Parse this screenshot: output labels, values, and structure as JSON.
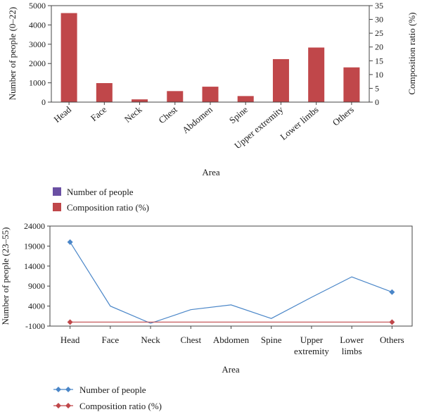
{
  "chart_data": [
    {
      "type": "bar",
      "categories": [
        "Head",
        "Face",
        "Neck",
        "Chest",
        "Abdomen",
        "Spine",
        "Upper extremity",
        "Lower limbs",
        "Others"
      ],
      "series": [
        {
          "name": "Number of people",
          "values": [
            0,
            0,
            0,
            0,
            0,
            0,
            0,
            0,
            0
          ],
          "color": "#6a4fa3"
        },
        {
          "name": "Composition ratio (%)",
          "values": [
            32.3,
            6.9,
            1.0,
            4.0,
            5.6,
            2.2,
            15.6,
            19.8,
            12.6
          ],
          "color": "#c0474a"
        }
      ],
      "xlabel": "Area",
      "ylabel": "Number of people (0–22)",
      "y2label": "Composition ratio (%)",
      "ylim": [
        0,
        5000
      ],
      "y2lim": [
        0,
        35
      ],
      "yticks": [
        "0",
        "1000",
        "2000",
        "3000",
        "4000",
        "5000"
      ],
      "y2ticks": [
        "0",
        "5",
        "10",
        "15",
        "20",
        "25",
        "30",
        "35"
      ],
      "legend": "bottom-left",
      "grid": false
    },
    {
      "type": "line",
      "categories": [
        "Head",
        "Face",
        "Neck",
        "Chest",
        "Abdomen",
        "Spine",
        "Upper extremity",
        "Lower limbs",
        "Others"
      ],
      "category_lines": [
        [
          "Head"
        ],
        [
          "Face"
        ],
        [
          "Neck"
        ],
        [
          "Chest"
        ],
        [
          "Abdomen"
        ],
        [
          "Spine"
        ],
        [
          "Upper",
          "extremity"
        ],
        [
          "Lower",
          "limbs"
        ],
        [
          "Others"
        ]
      ],
      "series": [
        {
          "name": "Number of people",
          "values": [
            20000,
            4000,
            -300,
            3100,
            4300,
            900,
            6200,
            11300,
            7500
          ],
          "color": "#4a86c8",
          "marker": "diamond",
          "marked_points": [
            0,
            8
          ]
        },
        {
          "name": "Composition ratio (%)",
          "values": [
            0,
            0,
            0,
            0,
            0,
            0,
            0,
            0,
            0
          ],
          "color": "#c0474a",
          "marker": "diamond",
          "marked_points": [
            0,
            8
          ]
        }
      ],
      "xlabel": "Area",
      "ylabel": "Number of people (23–55)",
      "ylim": [
        -1000,
        24000
      ],
      "yticks": [
        "-1000",
        "4000",
        "9000",
        "14000",
        "19000",
        "24000"
      ],
      "legend": "bottom-left",
      "grid": false
    }
  ]
}
